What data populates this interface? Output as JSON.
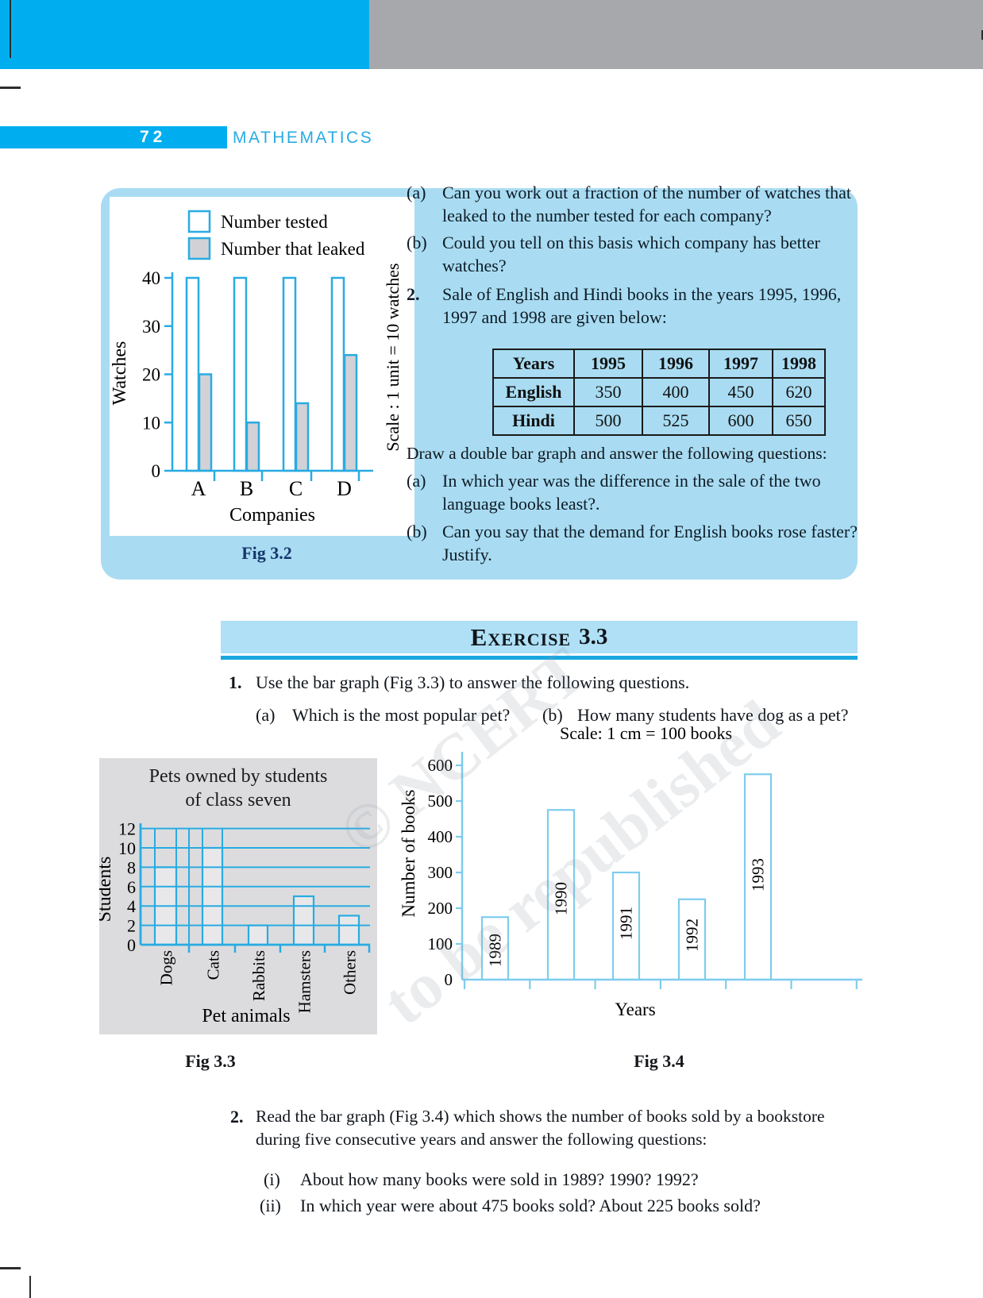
{
  "page": {
    "number": "72",
    "subject": "MATHEMATICS"
  },
  "watermark": {
    "line1": "© NCERT",
    "line2": "to be republished"
  },
  "qa": {
    "item_a_label": "(a)",
    "item_a": "Can you work out a fraction of the number of watches that leaked to the number tested for each company?",
    "item_b_label": "(b)",
    "item_b": "Could you tell on this basis which company has better watches?",
    "q2_label": "2.",
    "q2_text": "Sale of English and Hindi books in the years 1995, 1996, 1997 and 1998 are given below:",
    "table": {
      "headers": [
        "Years",
        "1995",
        "1996",
        "1997",
        "1998"
      ],
      "rows": [
        [
          "English",
          "350",
          "400",
          "450",
          "620"
        ],
        [
          "Hindi",
          "500",
          "525",
          "600",
          "650"
        ]
      ]
    },
    "draw_text": "Draw a double bar graph and answer the following questions:",
    "sub_a_label": "(a)",
    "sub_a": "In which year was the difference in the sale of the two language books least?.",
    "sub_b_label": "(b)",
    "sub_b": "Can you say that the demand for English books rose faster? Justify."
  },
  "exercise": {
    "word": "Exercise",
    "number": "3.3"
  },
  "q1": {
    "label": "1.",
    "text": "Use the bar graph (Fig 3.3) to answer the following questions.",
    "a_label": "(a)",
    "a_text": "Which is the most popular pet?",
    "b_label": "(b)",
    "b_text": "How many students have dog as a pet?"
  },
  "q2": {
    "label": "2.",
    "text": "Read the bar graph (Fig 3.4) which shows the number of books sold by a bookstore during five consecutive years and answer the following questions:",
    "i_label": "(i)",
    "i_text": "About how many books were sold in 1989? 1990? 1992?",
    "ii_label": "(ii)",
    "ii_text": "In which year were about 475 books sold? About 225 books sold?"
  },
  "chart_data": [
    {
      "id": "fig32",
      "type": "bar",
      "caption": "Fig 3.2",
      "legend": [
        "Number tested",
        "Number that leaked"
      ],
      "categories": [
        "A",
        "B",
        "C",
        "D"
      ],
      "series": [
        {
          "name": "Number tested",
          "values": [
            40,
            40,
            40,
            40
          ]
        },
        {
          "name": "Number that leaked",
          "values": [
            20,
            10,
            14,
            24
          ]
        }
      ],
      "xlabel": "Companies",
      "ylabel": "Watches",
      "scale_note": "Scale : 1 unit = 10 watches",
      "yticks": [
        0,
        10,
        20,
        30,
        40
      ],
      "ylim": [
        0,
        40
      ],
      "colors": {
        "tested_fill": "#ffffff",
        "leaked_fill": "#d2d2d6",
        "stroke": "#29abe2"
      }
    },
    {
      "id": "fig33",
      "type": "bar",
      "caption": "Fig 3.3",
      "title_lines": [
        "Pets owned by students",
        "of class seven"
      ],
      "categories": [
        "Dogs",
        "Cats",
        "Rabbits",
        "Hamsters",
        "Others"
      ],
      "values": [
        8,
        10,
        2,
        5,
        3
      ],
      "xlabel": "Pet animals",
      "ylabel": "Students",
      "yticks": [
        0,
        2,
        4,
        6,
        8,
        10,
        12
      ],
      "ylim": [
        0,
        12
      ],
      "grid": "on",
      "colors": {
        "bar_fill": "#e8e8eb",
        "stroke": "#29abe2",
        "panel": "#dcdcde"
      }
    },
    {
      "id": "fig34",
      "type": "bar",
      "caption": "Fig 3.4",
      "scale_note": "Scale: 1 cm = 100 books",
      "categories": [
        "1989",
        "1990",
        "1991",
        "1992",
        "1993"
      ],
      "values": [
        175,
        475,
        300,
        225,
        575
      ],
      "xlabel": "Years",
      "ylabel": "Number of books",
      "yticks": [
        0,
        100,
        200,
        300,
        400,
        500,
        600
      ],
      "ylim": [
        0,
        600
      ],
      "colors": {
        "bar_fill": "#ffffff",
        "stroke": "#7eccee"
      }
    }
  ]
}
